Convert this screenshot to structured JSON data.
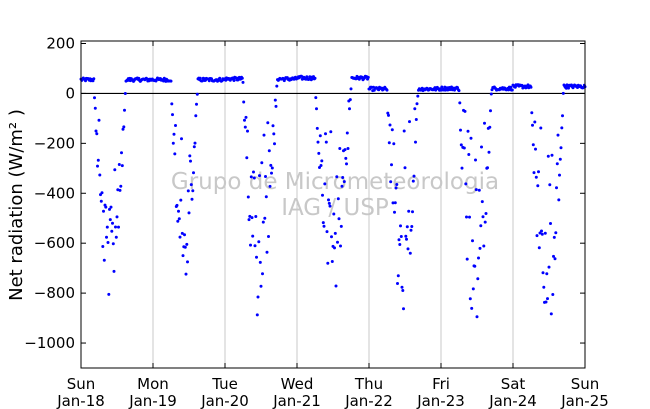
{
  "chart_data": {
    "type": "scatter",
    "ylabel": "Net radiation (W/m² )",
    "ylim": [
      -1100,
      210
    ],
    "yticks": [
      200,
      0,
      -200,
      -400,
      -600,
      -800,
      -1000
    ],
    "ytick_labels": [
      "200",
      "0",
      "−200",
      "−400",
      "−600",
      "−800",
      "−1000"
    ],
    "xlim": [
      0,
      7
    ],
    "xticks": [
      {
        "day": "Sun",
        "date": "Jan-18"
      },
      {
        "day": "Mon",
        "date": "Jan-19"
      },
      {
        "day": "Tue",
        "date": "Jan-20"
      },
      {
        "day": "Wed",
        "date": "Jan-21"
      },
      {
        "day": "Thu",
        "date": "Jan-22"
      },
      {
        "day": "Fri",
        "date": "Jan-23"
      },
      {
        "day": "Sat",
        "date": "Jan-24"
      },
      {
        "day": "Sun",
        "date": "Jan-25"
      }
    ],
    "grid": "vertical",
    "zero_line": true,
    "series": [
      {
        "color": "#0000ff",
        "marker": "dot",
        "days": [
          {
            "start": 0.18,
            "end": 0.62,
            "min": -830,
            "night": 55
          },
          {
            "start": 1.25,
            "end": 1.62,
            "min": -760,
            "night": 55
          },
          {
            "start": 2.25,
            "end": 2.72,
            "min": -920,
            "night": 58
          },
          {
            "start": 3.25,
            "end": 3.75,
            "min": -830,
            "night": 62
          },
          {
            "start": 4.25,
            "end": 4.68,
            "min": -880,
            "night": 18
          },
          {
            "start": 5.25,
            "end": 5.7,
            "min": -950,
            "night": 20
          },
          {
            "start": 6.25,
            "end": 6.7,
            "min": -985,
            "night": 28
          }
        ]
      }
    ]
  },
  "watermark": [
    "Grupo de Micrometeorologia",
    "IAG / USP"
  ]
}
